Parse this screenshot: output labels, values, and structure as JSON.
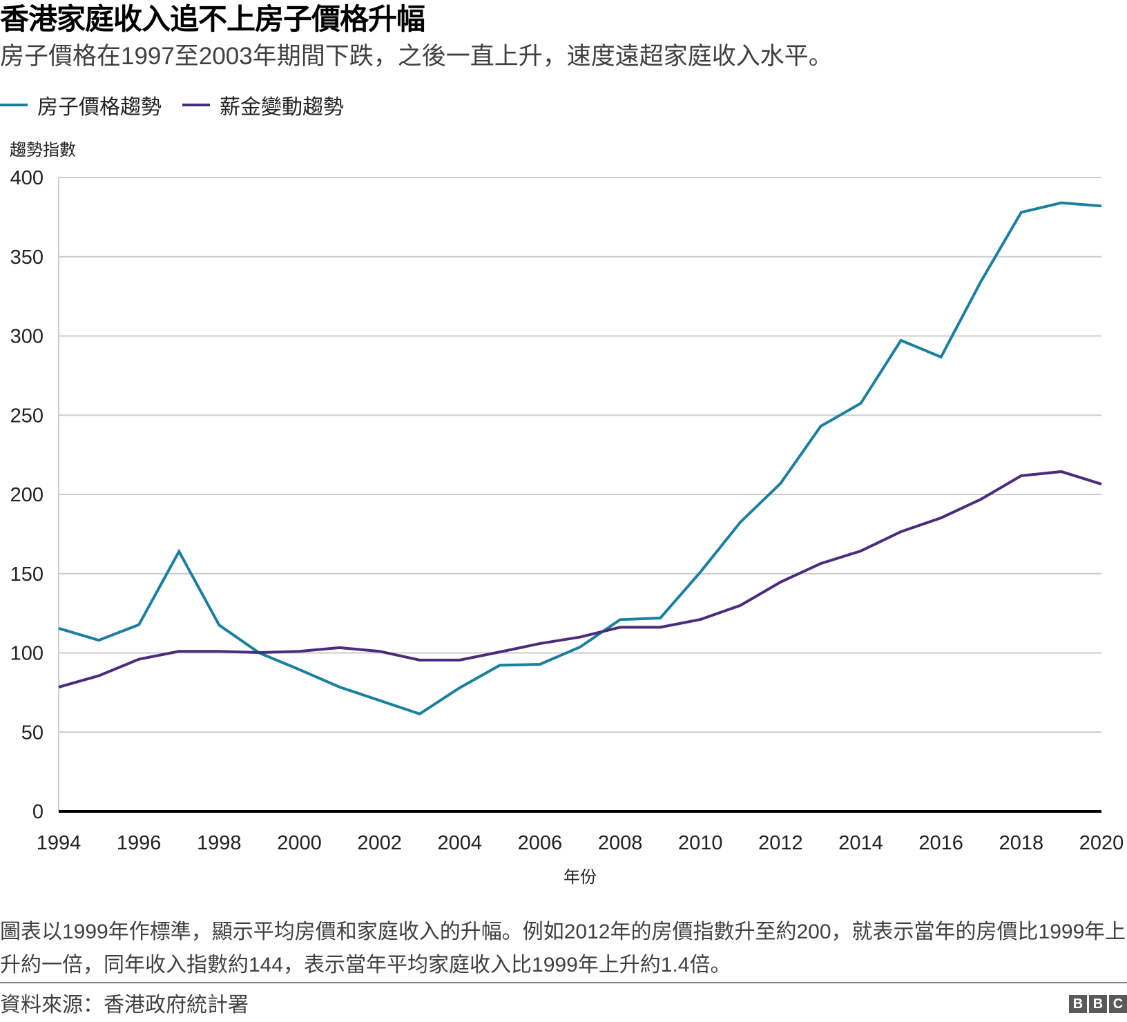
{
  "header": {
    "title": "香港家庭收入追不上房子價格升幅",
    "subtitle": "房子價格在1997至2003年期間下跌，之後一直上升，速度遠超家庭收入水平。"
  },
  "footer": {
    "note": "圖表以1999年作標準，顯示平均房價和家庭收入的升幅。例如2012年的房價指數升至約200，就表示當年的房價比1999年上升約一倍，同年收入指數約144，表示當年平均家庭收入比1999年上升約1.4倍。",
    "source": "資料來源：香港政府統計署",
    "logo_letters": [
      "B",
      "B",
      "C"
    ]
  },
  "colors": {
    "house_price": "#1b7fa0",
    "salary": "#4b2c7b",
    "grid": "#cccccc",
    "axis": "#000000"
  },
  "chart_data": {
    "type": "line",
    "title": "香港家庭收入追不上房子價格升幅",
    "subtitle": "房子價格在1997至2003年期間下跌，之後一直上升，速度遠超家庭收入水平。",
    "xlabel": "年份",
    "ylabel": "趨勢指數",
    "x": [
      1994,
      1995,
      1996,
      1997,
      1998,
      1999,
      2000,
      2001,
      2002,
      2003,
      2004,
      2005,
      2006,
      2007,
      2008,
      2009,
      2010,
      2011,
      2012,
      2013,
      2014,
      2015,
      2016,
      2017,
      2018,
      2019,
      2020
    ],
    "xlim": [
      1994,
      2020
    ],
    "x_ticks": [
      "1994",
      "1996",
      "1998",
      "2000",
      "2002",
      "2004",
      "2006",
      "2008",
      "2010",
      "2012",
      "2014",
      "2016",
      "2018",
      "2020"
    ],
    "ylim": [
      0,
      400
    ],
    "y_ticks": [
      "0",
      "50",
      "100",
      "150",
      "200",
      "250",
      "300",
      "350",
      "400"
    ],
    "grid": true,
    "legend_position": "top-left",
    "series": [
      {
        "name": "房子價格趨勢",
        "color": "#1b7fa0",
        "values": [
          115.5,
          108,
          117.8,
          164,
          117.6,
          100,
          89.5,
          78.5,
          70,
          61.5,
          78,
          92.2,
          92.8,
          103.7,
          121,
          122,
          151,
          182.6,
          207,
          243,
          257.5,
          297.2,
          286.7,
          334.6,
          378,
          384,
          382
        ]
      },
      {
        "name": "薪金變動趨勢",
        "color": "#4b2c7b",
        "values": [
          78.4,
          85.6,
          96,
          101,
          101,
          100.2,
          101,
          103.3,
          101,
          95.5,
          95.5,
          100.6,
          105.9,
          110,
          116.2,
          116.2,
          121.1,
          130,
          144.7,
          156.4,
          164.3,
          176.5,
          185.2,
          197,
          211.8,
          214.4,
          206.5
        ]
      }
    ]
  }
}
